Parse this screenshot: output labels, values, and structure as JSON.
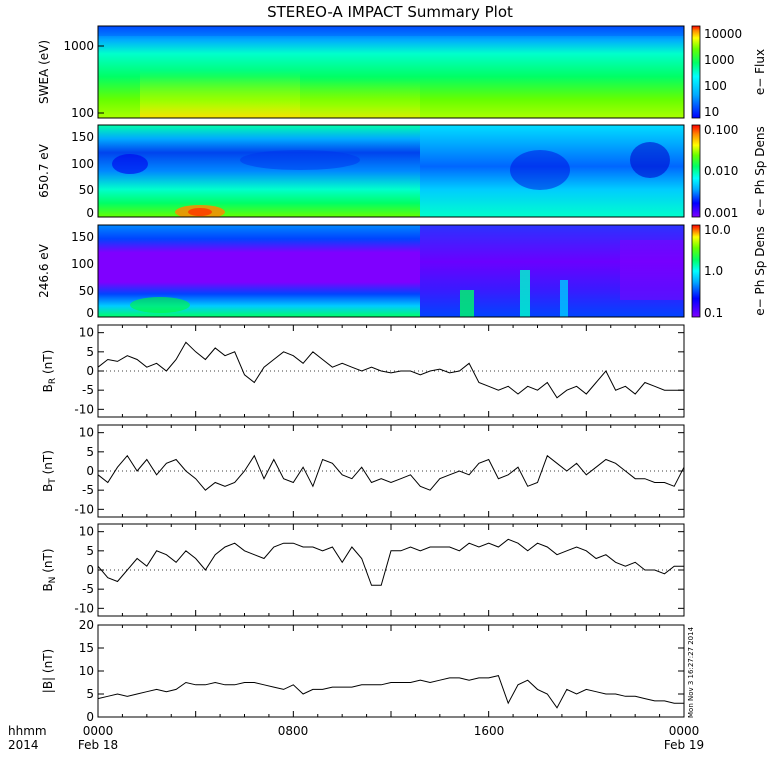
{
  "title": "STEREO-A IMPACT Summary Plot",
  "timestamp": "Mon Nov 3 16:27:27 2014",
  "time_axis": {
    "row1_labels": [
      "hhmm",
      "0000",
      "0800",
      "1600",
      "0000"
    ],
    "row2_labels": [
      "2014",
      "Feb 18",
      "Feb 19"
    ]
  },
  "colors": {
    "spectrogram_scale": [
      "#7f00ff",
      "#0000ff",
      "#00aaff",
      "#00ffff",
      "#00ff66",
      "#66ff00",
      "#ffff00",
      "#ff8800",
      "#ff0000"
    ],
    "line": "#000000",
    "zero_line": "#000000"
  },
  "chart_data": [
    {
      "type": "heatmap",
      "panel": "swea_energy",
      "ylabel": "SWEA (eV)",
      "yscale": "log",
      "ylim": [
        100,
        2000
      ],
      "yticks": [
        "1000",
        "100"
      ],
      "colorbar": {
        "label": "e−  Flux",
        "ticks": [
          "10000",
          "1000",
          "100",
          "10"
        ],
        "scale": "log",
        "range": [
          10,
          20000
        ]
      },
      "description_profile_log_flux_by_energy_low_to_high": [
        3.7,
        3.4,
        3.0,
        2.6,
        2.1,
        1.6
      ]
    },
    {
      "type": "heatmap",
      "panel": "pad_650",
      "ylabel": "650.7 eV",
      "ylim": [
        0,
        180
      ],
      "yticks": [
        "150",
        "100",
        "50",
        "0"
      ],
      "colorbar": {
        "label": "e−  Ph Sp Dens",
        "ticks": [
          "0.100",
          "0.010",
          "0.001"
        ],
        "scale": "log",
        "range": [
          0.001,
          0.1
        ]
      }
    },
    {
      "type": "heatmap",
      "panel": "pad_246",
      "ylabel": "246.6 eV",
      "ylim": [
        0,
        180
      ],
      "yticks": [
        "150",
        "100",
        "50",
        "0"
      ],
      "colorbar": {
        "label": "e−  Ph Sp Dens",
        "ticks": [
          "10.0",
          "1.0",
          "0.1"
        ],
        "scale": "log",
        "range": [
          0.1,
          10
        ]
      }
    },
    {
      "type": "line",
      "panel": "BR",
      "ylabel": "B",
      "ylabel_sub": "R",
      "ylabel_unit": "(nT)",
      "ylim": [
        -12,
        12
      ],
      "yticks": [
        "10",
        "5",
        "0",
        "-5",
        "-10"
      ],
      "x_hours": [
        0,
        0.4,
        0.8,
        1.2,
        1.6,
        2.0,
        2.4,
        2.8,
        3.2,
        3.6,
        4.0,
        4.4,
        4.8,
        5.2,
        5.6,
        6.0,
        6.4,
        6.8,
        7.2,
        7.6,
        8.0,
        8.4,
        8.8,
        9.2,
        9.6,
        10.0,
        10.4,
        10.8,
        11.2,
        11.6,
        12.0,
        12.4,
        12.8,
        13.2,
        13.6,
        14.0,
        14.4,
        14.8,
        15.2,
        15.6,
        16.0,
        16.4,
        16.8,
        17.2,
        17.6,
        18.0,
        18.4,
        18.8,
        19.2,
        19.6,
        20.0,
        20.4,
        20.8,
        21.2,
        21.6,
        22.0,
        22.4,
        22.8,
        23.2,
        23.6,
        24.0
      ],
      "values": [
        1,
        3,
        2.5,
        4,
        3,
        1,
        2,
        0,
        3,
        7.5,
        5,
        3,
        6,
        4,
        5,
        -1,
        -3,
        1,
        3,
        5,
        4,
        2,
        5,
        3,
        1,
        2,
        1,
        0,
        1,
        0,
        -0.5,
        0,
        0,
        -1,
        0,
        0.5,
        -0.5,
        0,
        2,
        -3,
        -4,
        -5,
        -4,
        -6,
        -4,
        -5,
        -3,
        -7,
        -5,
        -4,
        -6,
        -3,
        0,
        -5,
        -4,
        -6,
        -3,
        -4,
        -5,
        -5,
        -5
      ]
    },
    {
      "type": "line",
      "panel": "BT",
      "ylabel": "B",
      "ylabel_sub": "T",
      "ylabel_unit": "(nT)",
      "ylim": [
        -12,
        12
      ],
      "yticks": [
        "10",
        "5",
        "0",
        "-5",
        "-10"
      ],
      "x_hours": [
        0,
        0.4,
        0.8,
        1.2,
        1.6,
        2.0,
        2.4,
        2.8,
        3.2,
        3.6,
        4.0,
        4.4,
        4.8,
        5.2,
        5.6,
        6.0,
        6.4,
        6.8,
        7.2,
        7.6,
        8.0,
        8.4,
        8.8,
        9.2,
        9.6,
        10.0,
        10.4,
        10.8,
        11.2,
        11.6,
        12.0,
        12.4,
        12.8,
        13.2,
        13.6,
        14.0,
        14.4,
        14.8,
        15.2,
        15.6,
        16.0,
        16.4,
        16.8,
        17.2,
        17.6,
        18.0,
        18.4,
        18.8,
        19.2,
        19.6,
        20.0,
        20.4,
        20.8,
        21.2,
        21.6,
        22.0,
        22.4,
        22.8,
        23.2,
        23.6,
        24.0
      ],
      "values": [
        -1,
        -3,
        1,
        4,
        0,
        3,
        -1,
        2,
        3,
        0,
        -2,
        -5,
        -3,
        -4,
        -3,
        0,
        4,
        -2,
        3,
        -2,
        -3,
        1,
        -4,
        3,
        2,
        -1,
        -2,
        1,
        -3,
        -2,
        -3,
        -2,
        -1,
        -4,
        -5,
        -2,
        -1,
        0,
        -1,
        2,
        3,
        -2,
        -1,
        1,
        -4,
        -3,
        4,
        2,
        0,
        2,
        -1,
        1,
        3,
        2,
        0,
        -2,
        -2,
        -3,
        -3,
        -4,
        1
      ]
    },
    {
      "type": "line",
      "panel": "BN",
      "ylabel": "B",
      "ylabel_sub": "N",
      "ylabel_unit": "(nT)",
      "ylim": [
        -12,
        12
      ],
      "yticks": [
        "10",
        "5",
        "0",
        "-5",
        "-10"
      ],
      "x_hours": [
        0,
        0.4,
        0.8,
        1.2,
        1.6,
        2.0,
        2.4,
        2.8,
        3.2,
        3.6,
        4.0,
        4.4,
        4.8,
        5.2,
        5.6,
        6.0,
        6.4,
        6.8,
        7.2,
        7.6,
        8.0,
        8.4,
        8.8,
        9.2,
        9.6,
        10.0,
        10.4,
        10.8,
        11.2,
        11.6,
        12.0,
        12.4,
        12.8,
        13.2,
        13.6,
        14.0,
        14.4,
        14.8,
        15.2,
        15.6,
        16.0,
        16.4,
        16.8,
        17.2,
        17.6,
        18.0,
        18.4,
        18.8,
        19.2,
        19.6,
        20.0,
        20.4,
        20.8,
        21.2,
        21.6,
        22.0,
        22.4,
        22.8,
        23.2,
        23.6,
        24.0
      ],
      "values": [
        1,
        -2,
        -3,
        0,
        3,
        1,
        5,
        4,
        2,
        5,
        3,
        0,
        4,
        6,
        7,
        5,
        4,
        3,
        6,
        7,
        7,
        6,
        6,
        5,
        6,
        2,
        6,
        3,
        -4,
        -4,
        5,
        5,
        6,
        5,
        6,
        6,
        6,
        5,
        7,
        6,
        7,
        6,
        8,
        7,
        5,
        7,
        6,
        4,
        5,
        6,
        5,
        3,
        4,
        2,
        1,
        2,
        0,
        0,
        -1,
        1,
        1
      ]
    },
    {
      "type": "line",
      "panel": "Bmag",
      "ylabel": "|B| (nT)",
      "ylim": [
        0,
        20
      ],
      "yticks": [
        "20",
        "15",
        "10",
        "5",
        "0"
      ],
      "x_hours": [
        0,
        0.4,
        0.8,
        1.2,
        1.6,
        2.0,
        2.4,
        2.8,
        3.2,
        3.6,
        4.0,
        4.4,
        4.8,
        5.2,
        5.6,
        6.0,
        6.4,
        6.8,
        7.2,
        7.6,
        8.0,
        8.4,
        8.8,
        9.2,
        9.6,
        10.0,
        10.4,
        10.8,
        11.2,
        11.6,
        12.0,
        12.4,
        12.8,
        13.2,
        13.6,
        14.0,
        14.4,
        14.8,
        15.2,
        15.6,
        16.0,
        16.4,
        16.8,
        17.2,
        17.6,
        18.0,
        18.4,
        18.8,
        19.2,
        19.6,
        20.0,
        20.4,
        20.8,
        21.2,
        21.6,
        22.0,
        22.4,
        22.8,
        23.2,
        23.6,
        24.0
      ],
      "values": [
        4,
        4.5,
        5,
        4.5,
        5,
        5.5,
        6,
        5.5,
        6,
        7.5,
        7,
        7,
        7.5,
        7,
        7,
        7.5,
        7.5,
        7,
        6.5,
        6,
        7,
        5,
        6,
        6,
        6.5,
        6.5,
        6.5,
        7,
        7,
        7,
        7.5,
        7.5,
        7.5,
        8,
        7.5,
        8,
        8.5,
        8.5,
        8,
        8.5,
        8.5,
        9,
        3,
        7,
        8,
        6,
        5,
        2,
        6,
        5,
        6,
        5.5,
        5,
        5,
        4.5,
        4.5,
        4,
        3.5,
        3.5,
        3,
        3
      ]
    }
  ]
}
